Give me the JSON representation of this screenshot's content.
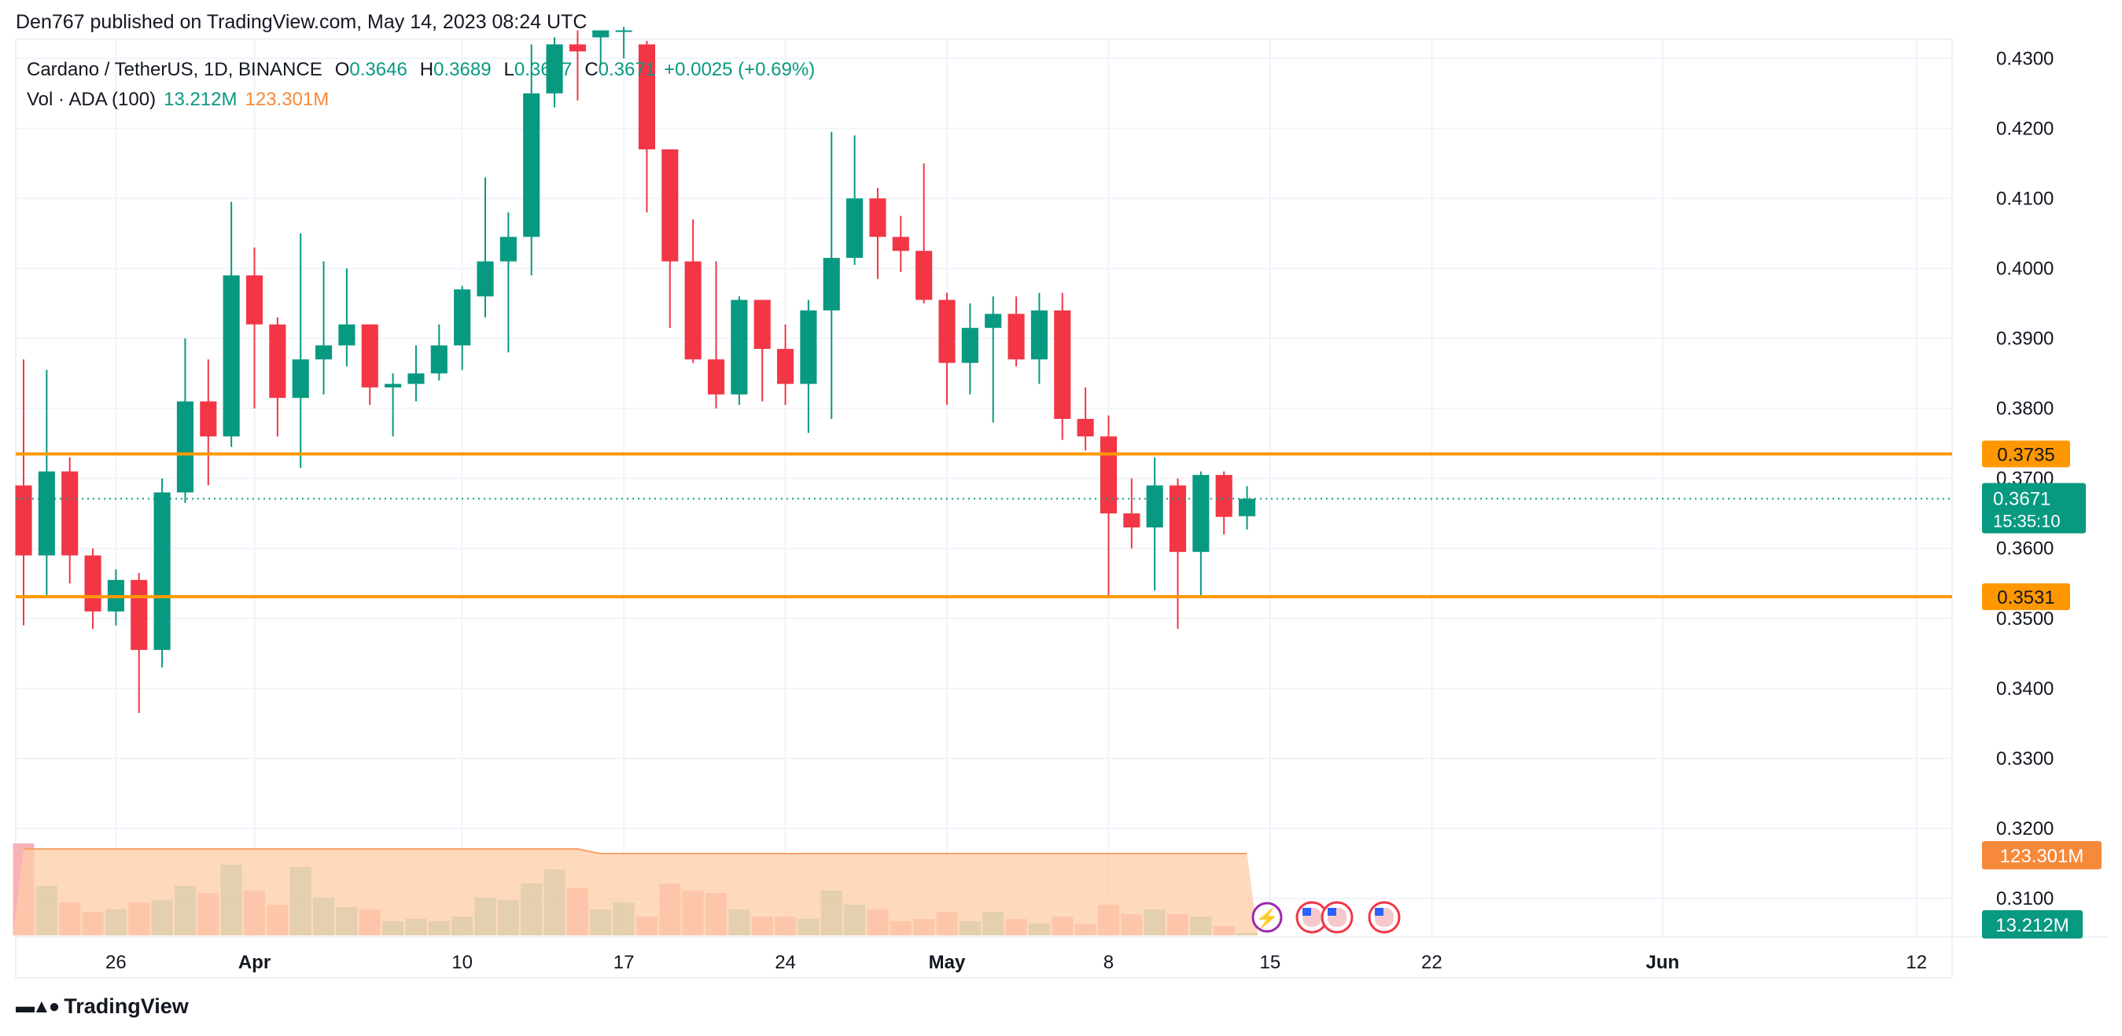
{
  "header": {
    "publisher_line": "Den767 published on TradingView.com, May 14, 2023 08:24 UTC"
  },
  "legend": {
    "symbol": "Cardano / TetherUS, 1D, BINANCE",
    "open_label": "O",
    "open": "0.3646",
    "high_label": "H",
    "high": "0.3689",
    "low_label": "L",
    "low": "0.3627",
    "close_label": "C",
    "close": "0.3671",
    "change": "+0.0025 (+0.69%)",
    "vol_label": "Vol · ADA (100)",
    "vol_value": "13.212M",
    "vol_ma": "123.301M"
  },
  "footer": {
    "brand": "TradingView"
  },
  "colors": {
    "up": "#089981",
    "down": "#f23645",
    "level": "#ff9800",
    "vol_ma_fill": "#ffcca6",
    "last_price": "#089981"
  },
  "chart_data": {
    "type": "candlestick",
    "y_ticks": [
      "0.4300",
      "0.4200",
      "0.4100",
      "0.4000",
      "0.3900",
      "0.3800",
      "0.3700",
      "0.3600",
      "0.3500",
      "0.3400",
      "0.3300",
      "0.3200",
      "0.3100"
    ],
    "ylim": [
      0.3045,
      0.4325
    ],
    "x_ticks": [
      {
        "label": "26",
        "date": "2023-03-26",
        "bold": false
      },
      {
        "label": "Apr",
        "date": "2023-04-01",
        "bold": true
      },
      {
        "label": "10",
        "date": "2023-04-10",
        "bold": false
      },
      {
        "label": "17",
        "date": "2023-04-17",
        "bold": false
      },
      {
        "label": "24",
        "date": "2023-04-24",
        "bold": false
      },
      {
        "label": "May",
        "date": "2023-05-01",
        "bold": true
      },
      {
        "label": "8",
        "date": "2023-05-08",
        "bold": false
      },
      {
        "label": "15",
        "date": "2023-05-15",
        "bold": false
      },
      {
        "label": "22",
        "date": "2023-05-22",
        "bold": false
      },
      {
        "label": "Jun",
        "date": "2023-06-01",
        "bold": true
      },
      {
        "label": "12",
        "date": "2023-06-12",
        "bold": false
      }
    ],
    "levels": [
      {
        "value": 0.3735,
        "label": "0.3735"
      },
      {
        "value": 0.3531,
        "label": "0.3531"
      }
    ],
    "last_price": {
      "value": 0.3671,
      "label": "0.3671",
      "countdown": "15:35:10"
    },
    "volume_labels": {
      "ma": "123.301M",
      "current": "13.212M"
    },
    "candles": [
      {
        "date": "2023-03-22",
        "o": 0.369,
        "h": 0.387,
        "l": 0.349,
        "c": 0.359,
        "v": 0.39
      },
      {
        "date": "2023-03-23",
        "o": 0.359,
        "h": 0.3855,
        "l": 0.353,
        "c": 0.371,
        "v": 0.21
      },
      {
        "date": "2023-03-24",
        "o": 0.371,
        "h": 0.373,
        "l": 0.355,
        "c": 0.359,
        "v": 0.14
      },
      {
        "date": "2023-03-25",
        "o": 0.359,
        "h": 0.36,
        "l": 0.3485,
        "c": 0.351,
        "v": 0.1
      },
      {
        "date": "2023-03-26",
        "o": 0.351,
        "h": 0.357,
        "l": 0.349,
        "c": 0.3555,
        "v": 0.11
      },
      {
        "date": "2023-03-27",
        "o": 0.3555,
        "h": 0.3565,
        "l": 0.3365,
        "c": 0.3455,
        "v": 0.14
      },
      {
        "date": "2023-03-28",
        "o": 0.3455,
        "h": 0.37,
        "l": 0.343,
        "c": 0.368,
        "v": 0.15
      },
      {
        "date": "2023-03-29",
        "o": 0.368,
        "h": 0.39,
        "l": 0.3665,
        "c": 0.381,
        "v": 0.21
      },
      {
        "date": "2023-03-30",
        "o": 0.381,
        "h": 0.387,
        "l": 0.369,
        "c": 0.376,
        "v": 0.18
      },
      {
        "date": "2023-03-31",
        "o": 0.376,
        "h": 0.4095,
        "l": 0.3745,
        "c": 0.399,
        "v": 0.3
      },
      {
        "date": "2023-04-01",
        "o": 0.399,
        "h": 0.403,
        "l": 0.38,
        "c": 0.392,
        "v": 0.19
      },
      {
        "date": "2023-04-02",
        "o": 0.392,
        "h": 0.393,
        "l": 0.376,
        "c": 0.3815,
        "v": 0.13
      },
      {
        "date": "2023-04-03",
        "o": 0.3815,
        "h": 0.405,
        "l": 0.3715,
        "c": 0.387,
        "v": 0.29
      },
      {
        "date": "2023-04-04",
        "o": 0.387,
        "h": 0.401,
        "l": 0.382,
        "c": 0.389,
        "v": 0.16
      },
      {
        "date": "2023-04-05",
        "o": 0.389,
        "h": 0.4,
        "l": 0.386,
        "c": 0.392,
        "v": 0.12
      },
      {
        "date": "2023-04-06",
        "o": 0.392,
        "h": 0.392,
        "l": 0.3805,
        "c": 0.383,
        "v": 0.11
      },
      {
        "date": "2023-04-07",
        "o": 0.383,
        "h": 0.385,
        "l": 0.376,
        "c": 0.3835,
        "v": 0.06
      },
      {
        "date": "2023-04-08",
        "o": 0.3835,
        "h": 0.389,
        "l": 0.381,
        "c": 0.385,
        "v": 0.07
      },
      {
        "date": "2023-04-09",
        "o": 0.385,
        "h": 0.392,
        "l": 0.384,
        "c": 0.389,
        "v": 0.06
      },
      {
        "date": "2023-04-10",
        "o": 0.389,
        "h": 0.3975,
        "l": 0.3855,
        "c": 0.397,
        "v": 0.08
      },
      {
        "date": "2023-04-11",
        "o": 0.396,
        "h": 0.413,
        "l": 0.393,
        "c": 0.401,
        "v": 0.16
      },
      {
        "date": "2023-04-12",
        "o": 0.401,
        "h": 0.408,
        "l": 0.388,
        "c": 0.4045,
        "v": 0.15
      },
      {
        "date": "2023-04-13",
        "o": 0.4045,
        "h": 0.432,
        "l": 0.399,
        "c": 0.425,
        "v": 0.22
      },
      {
        "date": "2023-04-14",
        "o": 0.425,
        "h": 0.433,
        "l": 0.423,
        "c": 0.432,
        "v": 0.28
      },
      {
        "date": "2023-04-15",
        "o": 0.432,
        "h": 0.434,
        "l": 0.424,
        "c": 0.431,
        "v": 0.2
      },
      {
        "date": "2023-04-16",
        "o": 0.433,
        "h": 0.434,
        "l": 0.429,
        "c": 0.434,
        "v": 0.11
      },
      {
        "date": "2023-04-17",
        "o": 0.434,
        "h": 0.4345,
        "l": 0.43,
        "c": 0.434,
        "v": 0.14
      },
      {
        "date": "2023-04-18",
        "o": 0.432,
        "h": 0.4325,
        "l": 0.408,
        "c": 0.417,
        "v": 0.08
      },
      {
        "date": "2023-04-19",
        "o": 0.417,
        "h": 0.417,
        "l": 0.3915,
        "c": 0.401,
        "v": 0.22
      },
      {
        "date": "2023-04-20",
        "o": 0.401,
        "h": 0.407,
        "l": 0.3865,
        "c": 0.387,
        "v": 0.19
      },
      {
        "date": "2023-04-21",
        "o": 0.387,
        "h": 0.401,
        "l": 0.38,
        "c": 0.382,
        "v": 0.18
      },
      {
        "date": "2023-04-22",
        "o": 0.382,
        "h": 0.396,
        "l": 0.3805,
        "c": 0.3955,
        "v": 0.11
      },
      {
        "date": "2023-04-23",
        "o": 0.3955,
        "h": 0.3955,
        "l": 0.381,
        "c": 0.3885,
        "v": 0.08
      },
      {
        "date": "2023-04-24",
        "o": 0.3885,
        "h": 0.392,
        "l": 0.3805,
        "c": 0.3835,
        "v": 0.08
      },
      {
        "date": "2023-04-25",
        "o": 0.3835,
        "h": 0.3955,
        "l": 0.3765,
        "c": 0.394,
        "v": 0.07
      },
      {
        "date": "2023-04-26",
        "o": 0.394,
        "h": 0.4195,
        "l": 0.3785,
        "c": 0.4015,
        "v": 0.19
      },
      {
        "date": "2023-04-27",
        "o": 0.4015,
        "h": 0.419,
        "l": 0.4005,
        "c": 0.41,
        "v": 0.13
      },
      {
        "date": "2023-04-28",
        "o": 0.41,
        "h": 0.4115,
        "l": 0.3985,
        "c": 0.4045,
        "v": 0.11
      },
      {
        "date": "2023-04-29",
        "o": 0.4045,
        "h": 0.4075,
        "l": 0.3995,
        "c": 0.4025,
        "v": 0.06
      },
      {
        "date": "2023-04-30",
        "o": 0.4025,
        "h": 0.415,
        "l": 0.395,
        "c": 0.3955,
        "v": 0.07
      },
      {
        "date": "2023-05-01",
        "o": 0.3955,
        "h": 0.3965,
        "l": 0.3805,
        "c": 0.3865,
        "v": 0.1
      },
      {
        "date": "2023-05-02",
        "o": 0.3865,
        "h": 0.395,
        "l": 0.382,
        "c": 0.3915,
        "v": 0.06
      },
      {
        "date": "2023-05-03",
        "o": 0.3915,
        "h": 0.396,
        "l": 0.378,
        "c": 0.3935,
        "v": 0.1
      },
      {
        "date": "2023-05-04",
        "o": 0.3935,
        "h": 0.396,
        "l": 0.386,
        "c": 0.387,
        "v": 0.07
      },
      {
        "date": "2023-05-05",
        "o": 0.387,
        "h": 0.3965,
        "l": 0.3835,
        "c": 0.394,
        "v": 0.05
      },
      {
        "date": "2023-05-06",
        "o": 0.394,
        "h": 0.3965,
        "l": 0.3755,
        "c": 0.3785,
        "v": 0.08
      },
      {
        "date": "2023-05-07",
        "o": 0.3785,
        "h": 0.383,
        "l": 0.374,
        "c": 0.376,
        "v": 0.05
      },
      {
        "date": "2023-05-08",
        "o": 0.376,
        "h": 0.379,
        "l": 0.353,
        "c": 0.365,
        "v": 0.13
      },
      {
        "date": "2023-05-09",
        "o": 0.365,
        "h": 0.37,
        "l": 0.36,
        "c": 0.363,
        "v": 0.09
      },
      {
        "date": "2023-05-10",
        "o": 0.363,
        "h": 0.373,
        "l": 0.354,
        "c": 0.369,
        "v": 0.11
      },
      {
        "date": "2023-05-11",
        "o": 0.369,
        "h": 0.37,
        "l": 0.3485,
        "c": 0.3595,
        "v": 0.09
      },
      {
        "date": "2023-05-12",
        "o": 0.3595,
        "h": 0.371,
        "l": 0.353,
        "c": 0.3705,
        "v": 0.08
      },
      {
        "date": "2023-05-13",
        "o": 0.3705,
        "h": 0.371,
        "l": 0.362,
        "c": 0.3645,
        "v": 0.04
      },
      {
        "date": "2023-05-14",
        "o": 0.3646,
        "h": 0.3689,
        "l": 0.3627,
        "c": 0.3671,
        "v": 0.01
      }
    ]
  }
}
